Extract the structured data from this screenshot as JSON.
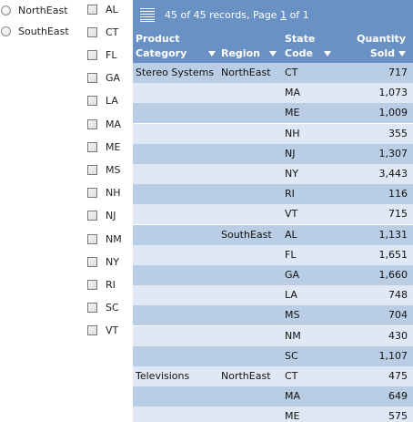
{
  "regions": [
    {
      "label": "NorthEast"
    },
    {
      "label": "SouthEast"
    }
  ],
  "states": [
    "AL",
    "CT",
    "FL",
    "GA",
    "LA",
    "MA",
    "ME",
    "MS",
    "NH",
    "NJ",
    "NM",
    "NY",
    "RI",
    "SC",
    "VT"
  ],
  "report": {
    "page_info_prefix": "45 of 45 records, Page ",
    "page_number": "1",
    "page_info_suffix": " of 1",
    "colors": {
      "header": "#6a91c4",
      "row_odd": "#b9cde5",
      "row_even": "#dfe8f4"
    },
    "columns": [
      {
        "line1": "Product",
        "line2": "Category"
      },
      {
        "line1": "",
        "line2": "Region"
      },
      {
        "line1": "State",
        "line2": "Code"
      },
      {
        "line1": "Quantity",
        "line2": "Sold"
      }
    ],
    "rows": [
      {
        "category": "Stereo Systems",
        "region": "NorthEast",
        "state": "CT",
        "qty": "717"
      },
      {
        "category": "",
        "region": "",
        "state": "MA",
        "qty": "1,073"
      },
      {
        "category": "",
        "region": "",
        "state": "ME",
        "qty": "1,009"
      },
      {
        "category": "",
        "region": "",
        "state": "NH",
        "qty": "355"
      },
      {
        "category": "",
        "region": "",
        "state": "NJ",
        "qty": "1,307"
      },
      {
        "category": "",
        "region": "",
        "state": "NY",
        "qty": "3,443"
      },
      {
        "category": "",
        "region": "",
        "state": "RI",
        "qty": "116"
      },
      {
        "category": "",
        "region": "",
        "state": "VT",
        "qty": "715"
      },
      {
        "category": "",
        "region": "SouthEast",
        "state": "AL",
        "qty": "1,131"
      },
      {
        "category": "",
        "region": "",
        "state": "FL",
        "qty": "1,651"
      },
      {
        "category": "",
        "region": "",
        "state": "GA",
        "qty": "1,660"
      },
      {
        "category": "",
        "region": "",
        "state": "LA",
        "qty": "748"
      },
      {
        "category": "",
        "region": "",
        "state": "MS",
        "qty": "704"
      },
      {
        "category": "",
        "region": "",
        "state": "NM",
        "qty": "430"
      },
      {
        "category": "",
        "region": "",
        "state": "SC",
        "qty": "1,107"
      },
      {
        "category": "Televisions",
        "region": "NorthEast",
        "state": "CT",
        "qty": "475"
      },
      {
        "category": "",
        "region": "",
        "state": "MA",
        "qty": "649"
      },
      {
        "category": "",
        "region": "",
        "state": "ME",
        "qty": "575"
      }
    ]
  }
}
